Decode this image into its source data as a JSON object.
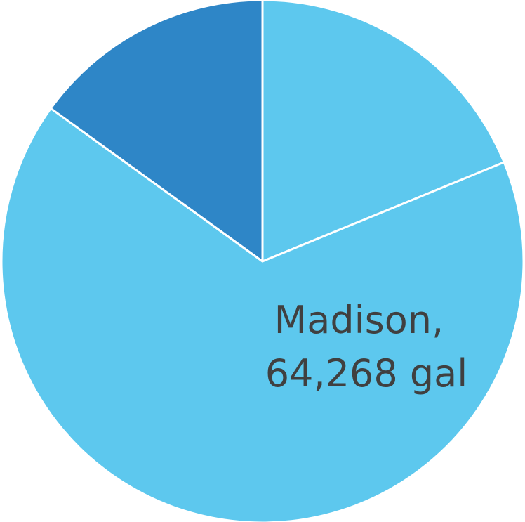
{
  "chart_data": {
    "type": "pie",
    "title": "",
    "categories": [
      "",
      "Madison",
      ""
    ],
    "values": [
      18276,
      64268,
      14624
    ],
    "colors": [
      "#5DC8EE",
      "#5DC8EE",
      "#2E86C7"
    ],
    "slice_border_color": "#ffffff",
    "data_labels": [
      "",
      "Madison,\n64,268 gal",
      ""
    ],
    "legend": "none",
    "start_angle_deg": 0,
    "direction": "clockwise"
  },
  "labels": {
    "madison_line1": "Madison,",
    "madison_line2": "64,268 gal"
  }
}
